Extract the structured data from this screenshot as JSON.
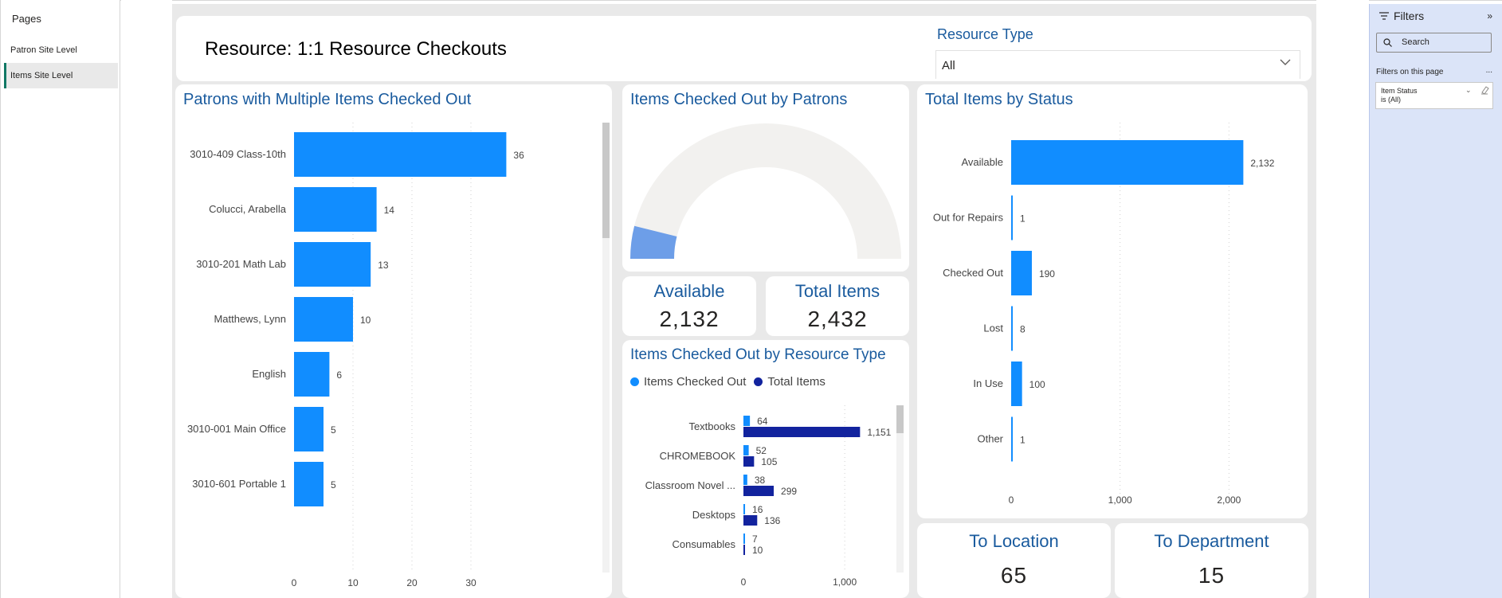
{
  "pages": {
    "title": "Pages",
    "items": [
      {
        "label": "Patron Site Level",
        "active": false
      },
      {
        "label": "Items Site Level",
        "active": true
      }
    ]
  },
  "header": {
    "title": "Resource: 1:1 Resource Checkouts",
    "slicer_label": "Resource Type",
    "slicer_value": "All"
  },
  "patrons_chart": {
    "title": "Patrons with Multiple Items Checked Out",
    "chart_data": {
      "type": "bar",
      "orientation": "horizontal",
      "categories": [
        "3010-409 Class-10th",
        "Colucci, Arabella",
        "3010-201 Math Lab",
        "Matthews, Lynn",
        "English",
        "3010-001 Main Office",
        "3010-601 Portable 1"
      ],
      "values": [
        36,
        14,
        13,
        10,
        6,
        5,
        5
      ],
      "xlim": [
        0,
        40
      ],
      "xticks": [
        0,
        10,
        20,
        30
      ],
      "color": "#118dff",
      "grid": true
    }
  },
  "gauge": {
    "title": "Items Checked Out by Patrons",
    "chart_data": {
      "type": "gauge",
      "value": 190,
      "min": 0,
      "max": 2432,
      "fill_color": "#6d9ee8",
      "track_color": "#f2f1ef"
    }
  },
  "kpi_available": {
    "title": "Available",
    "value": "2,132"
  },
  "kpi_total": {
    "title": "Total Items",
    "value": "2,432"
  },
  "resource_chart": {
    "title": "Items Checked Out by Resource Type",
    "legend": [
      {
        "label": "Items Checked Out",
        "color": "#118dff"
      },
      {
        "label": "Total Items",
        "color": "#12239e"
      }
    ],
    "chart_data": {
      "type": "bar",
      "orientation": "horizontal",
      "categories": [
        "Textbooks",
        "CHROMEBOOK",
        "Classroom Novel ...",
        "Desktops",
        "Consumables"
      ],
      "series": [
        {
          "name": "Items Checked Out",
          "values": [
            64,
            52,
            38,
            16,
            7
          ],
          "labels": [
            "64",
            "52",
            "38",
            "16",
            "7"
          ],
          "color": "#118dff"
        },
        {
          "name": "Total Items",
          "values": [
            1151,
            105,
            299,
            136,
            10
          ],
          "labels": [
            "1,151",
            "105",
            "299",
            "136",
            "10"
          ],
          "color": "#12239e"
        }
      ],
      "xlim": [
        0,
        1400
      ],
      "xticks": [
        0,
        1000
      ],
      "xtick_labels": [
        "0",
        "1,000"
      ],
      "grid": true
    }
  },
  "status_chart": {
    "title": "Total Items by Status",
    "chart_data": {
      "type": "bar",
      "orientation": "horizontal",
      "categories": [
        "Available",
        "Out for Repairs",
        "Checked Out",
        "Lost",
        "In Use",
        "Other"
      ],
      "values": [
        2132,
        1,
        190,
        8,
        100,
        1
      ],
      "labels": [
        "2,132",
        "1",
        "190",
        "8",
        "100",
        "1"
      ],
      "xlim": [
        0,
        2400
      ],
      "xticks": [
        0,
        1000,
        2000
      ],
      "xtick_labels": [
        "0",
        "1,000",
        "2,000"
      ],
      "color": "#118dff",
      "grid": true
    }
  },
  "kpi_location": {
    "title": "To Location",
    "value": "65"
  },
  "kpi_department": {
    "title": "To Department",
    "value": "15"
  },
  "filters": {
    "title": "Filters",
    "search_placeholder": "Search",
    "section_title": "Filters on this page",
    "more": "...",
    "card_name": "Item Status",
    "card_value": "is (All)"
  }
}
